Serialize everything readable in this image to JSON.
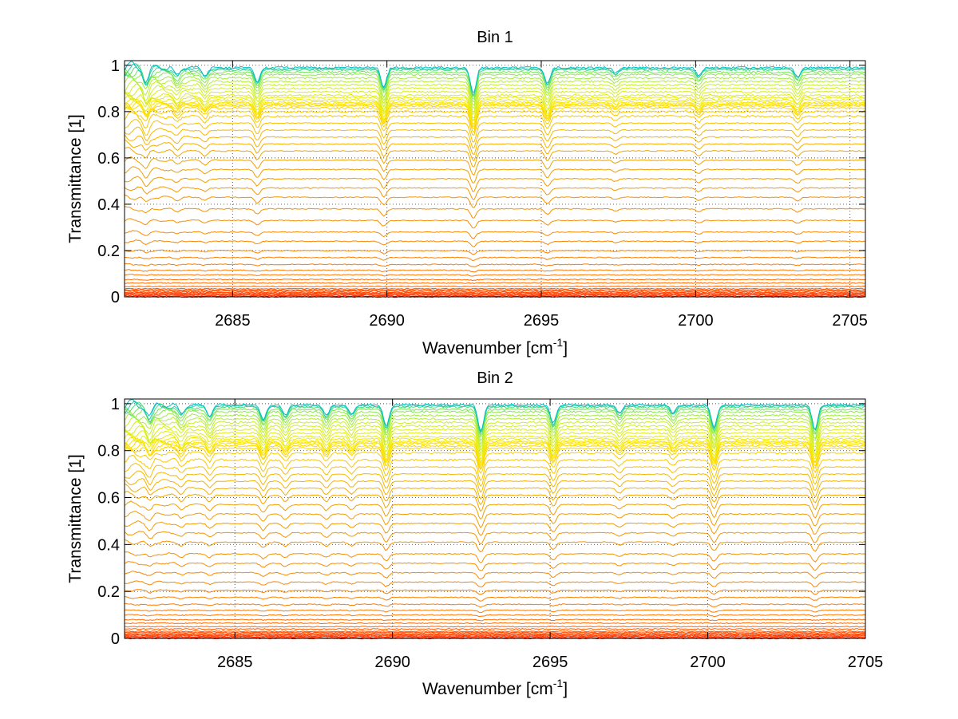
{
  "chart_data": [
    {
      "type": "line",
      "title": "Bin 1",
      "xlabel": "Wavenumber [cm",
      "xlabel_sup": "-1",
      "xlabel_end": "]",
      "ylabel": "Transmittance [1]",
      "xlim": [
        2681.5,
        2705.5
      ],
      "ylim": [
        0,
        1.02
      ],
      "xticks": [
        2685,
        2690,
        2695,
        2700,
        2705
      ],
      "xtick_labels": [
        "2685",
        "2690",
        "2695",
        "2700",
        "2705"
      ],
      "yticks": [
        0,
        0.2,
        0.4,
        0.6,
        0.8,
        1
      ],
      "ytick_labels": [
        "0",
        "0.2",
        "0.4",
        "0.6",
        "0.8",
        "1"
      ],
      "grid": true,
      "series_baselines": [
        0.0,
        0.004,
        0.008,
        0.012,
        0.016,
        0.02,
        0.025,
        0.03,
        0.035,
        0.045,
        0.06,
        0.075,
        0.095,
        0.115,
        0.14,
        0.17,
        0.2,
        0.24,
        0.28,
        0.33,
        0.38,
        0.43,
        0.47,
        0.51,
        0.55,
        0.59,
        0.63,
        0.66,
        0.69,
        0.72,
        0.75,
        0.78,
        0.8,
        0.815,
        0.825,
        0.83,
        0.835,
        0.84,
        0.85,
        0.86,
        0.87,
        0.885,
        0.9,
        0.915,
        0.93,
        0.945,
        0.96,
        0.97,
        0.98,
        0.985,
        0.99
      ],
      "absorption_lines": [
        {
          "x": 2682.2,
          "depth": 0.5
        },
        {
          "x": 2683.2,
          "depth": 0.3
        },
        {
          "x": 2684.1,
          "depth": 0.3
        },
        {
          "x": 2685.8,
          "depth": 0.55
        },
        {
          "x": 2689.9,
          "depth": 0.75
        },
        {
          "x": 2692.8,
          "depth": 1.0
        },
        {
          "x": 2695.2,
          "depth": 0.6
        },
        {
          "x": 2700.1,
          "depth": 0.3
        },
        {
          "x": 2703.3,
          "depth": 0.35
        },
        {
          "x": 2697.4,
          "depth": 0.2
        }
      ]
    },
    {
      "type": "line",
      "title": "Bin 2",
      "xlabel": "Wavenumber [cm",
      "xlabel_sup": "-1",
      "xlabel_end": "]",
      "ylabel": "Transmittance [1]",
      "xlim": [
        2681.5,
        2705.0
      ],
      "ylim": [
        0,
        1.02
      ],
      "xticks": [
        2685,
        2690,
        2695,
        2700,
        2705
      ],
      "xtick_labels": [
        "2685",
        "2690",
        "2695",
        "2700",
        "2705"
      ],
      "yticks": [
        0,
        0.2,
        0.4,
        0.6,
        0.8,
        1
      ],
      "ytick_labels": [
        "0",
        "0.2",
        "0.4",
        "0.6",
        "0.8",
        "1"
      ],
      "grid": true,
      "series_baselines": [
        0.0,
        0.004,
        0.008,
        0.012,
        0.016,
        0.02,
        0.025,
        0.03,
        0.04,
        0.05,
        0.065,
        0.08,
        0.1,
        0.12,
        0.145,
        0.175,
        0.205,
        0.24,
        0.28,
        0.32,
        0.36,
        0.41,
        0.45,
        0.49,
        0.53,
        0.57,
        0.61,
        0.64,
        0.67,
        0.7,
        0.73,
        0.76,
        0.79,
        0.81,
        0.82,
        0.83,
        0.835,
        0.84,
        0.85,
        0.86,
        0.875,
        0.89,
        0.905,
        0.92,
        0.935,
        0.95,
        0.965,
        0.975,
        0.985,
        0.99,
        0.995
      ],
      "absorption_lines": [
        {
          "x": 2682.3,
          "depth": 0.45
        },
        {
          "x": 2683.3,
          "depth": 0.35
        },
        {
          "x": 2684.2,
          "depth": 0.4
        },
        {
          "x": 2685.9,
          "depth": 0.55
        },
        {
          "x": 2686.6,
          "depth": 0.4
        },
        {
          "x": 2687.9,
          "depth": 0.4
        },
        {
          "x": 2688.7,
          "depth": 0.35
        },
        {
          "x": 2689.8,
          "depth": 0.8
        },
        {
          "x": 2692.8,
          "depth": 1.0
        },
        {
          "x": 2695.1,
          "depth": 0.7
        },
        {
          "x": 2697.2,
          "depth": 0.3
        },
        {
          "x": 2698.9,
          "depth": 0.3
        },
        {
          "x": 2700.2,
          "depth": 0.85
        },
        {
          "x": 2703.4,
          "depth": 0.9
        }
      ]
    }
  ]
}
